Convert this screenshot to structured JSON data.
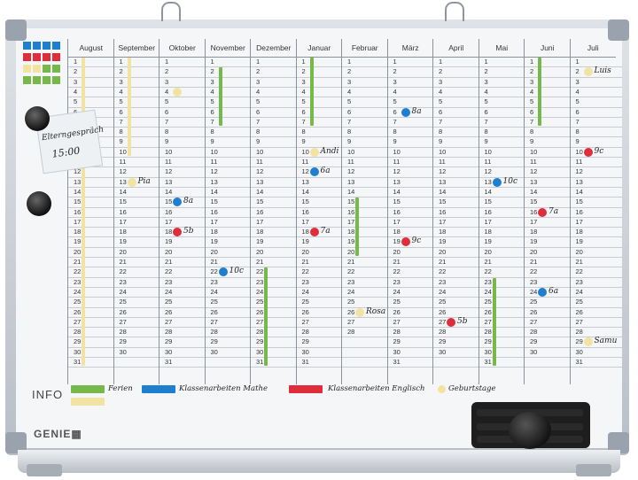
{
  "months": [
    {
      "name": "August",
      "days": 31
    },
    {
      "name": "September",
      "days": 30
    },
    {
      "name": "Oktober",
      "days": 31
    },
    {
      "name": "November",
      "days": 30
    },
    {
      "name": "Dezember",
      "days": 31
    },
    {
      "name": "Januar",
      "days": 31
    },
    {
      "name": "Februar",
      "days": 28
    },
    {
      "name": "März",
      "days": 31
    },
    {
      "name": "April",
      "days": 30
    },
    {
      "name": "Mai",
      "days": 31
    },
    {
      "name": "Juni",
      "days": 30
    },
    {
      "name": "Juli",
      "days": 31
    }
  ],
  "colors": {
    "green": "#76b84a",
    "blue": "#1e7fd0",
    "red": "#e02d3c",
    "yellow": "#f2e3a3"
  },
  "bars": [
    {
      "month": 0,
      "from": 1,
      "to": 31,
      "color": "yellow"
    },
    {
      "month": 1,
      "from": 1,
      "to": 10,
      "color": "yellow"
    },
    {
      "month": 3,
      "from": 2,
      "to": 7,
      "color": "green"
    },
    {
      "month": 4,
      "from": 22,
      "to": 31,
      "color": "green"
    },
    {
      "month": 5,
      "from": 1,
      "to": 7,
      "color": "green"
    },
    {
      "month": 6,
      "from": 15,
      "to": 20,
      "color": "green"
    },
    {
      "month": 9,
      "from": 23,
      "to": 31,
      "color": "green"
    },
    {
      "month": 10,
      "from": 1,
      "to": 7,
      "color": "green"
    }
  ],
  "markers": [
    {
      "month": 1,
      "day": 13,
      "color": "yellow",
      "label": "Pia"
    },
    {
      "month": 2,
      "day": 4,
      "color": "yellow",
      "label": ""
    },
    {
      "month": 2,
      "day": 15,
      "color": "blue",
      "label": "8a"
    },
    {
      "month": 2,
      "day": 18,
      "color": "red",
      "label": "5b"
    },
    {
      "month": 3,
      "day": 22,
      "color": "blue",
      "label": "10c"
    },
    {
      "month": 5,
      "day": 10,
      "color": "yellow",
      "label": "Andi"
    },
    {
      "month": 5,
      "day": 12,
      "color": "blue",
      "label": "6a"
    },
    {
      "month": 5,
      "day": 18,
      "color": "red",
      "label": "7a"
    },
    {
      "month": 6,
      "day": 26,
      "color": "yellow",
      "label": "Rosa"
    },
    {
      "month": 7,
      "day": 6,
      "color": "blue",
      "label": "8a"
    },
    {
      "month": 7,
      "day": 19,
      "color": "red",
      "label": "9c"
    },
    {
      "month": 8,
      "day": 27,
      "color": "red",
      "label": "5b"
    },
    {
      "month": 9,
      "day": 13,
      "color": "blue",
      "label": "10c"
    },
    {
      "month": 10,
      "day": 16,
      "color": "red",
      "label": "7a"
    },
    {
      "month": 10,
      "day": 24,
      "color": "blue",
      "label": "6a"
    },
    {
      "month": 11,
      "day": 2,
      "color": "yellow",
      "label": "Luis"
    },
    {
      "month": 11,
      "day": 10,
      "color": "red",
      "label": "9c"
    },
    {
      "month": 11,
      "day": 29,
      "color": "yellow",
      "label": "Samu"
    }
  ],
  "note": {
    "line1": "Elterngespräch",
    "line2": "15:00"
  },
  "legend": {
    "title": "INFO",
    "items": [
      {
        "color": "green",
        "label": "Ferien"
      },
      {
        "color": "blue",
        "label": "Klassenarbeiten Mathe"
      },
      {
        "color": "red",
        "label": "Klassenarbeiten Englisch"
      },
      {
        "color": "yellow",
        "label": "Geburtstage"
      }
    ]
  },
  "brand": "GENIE"
}
